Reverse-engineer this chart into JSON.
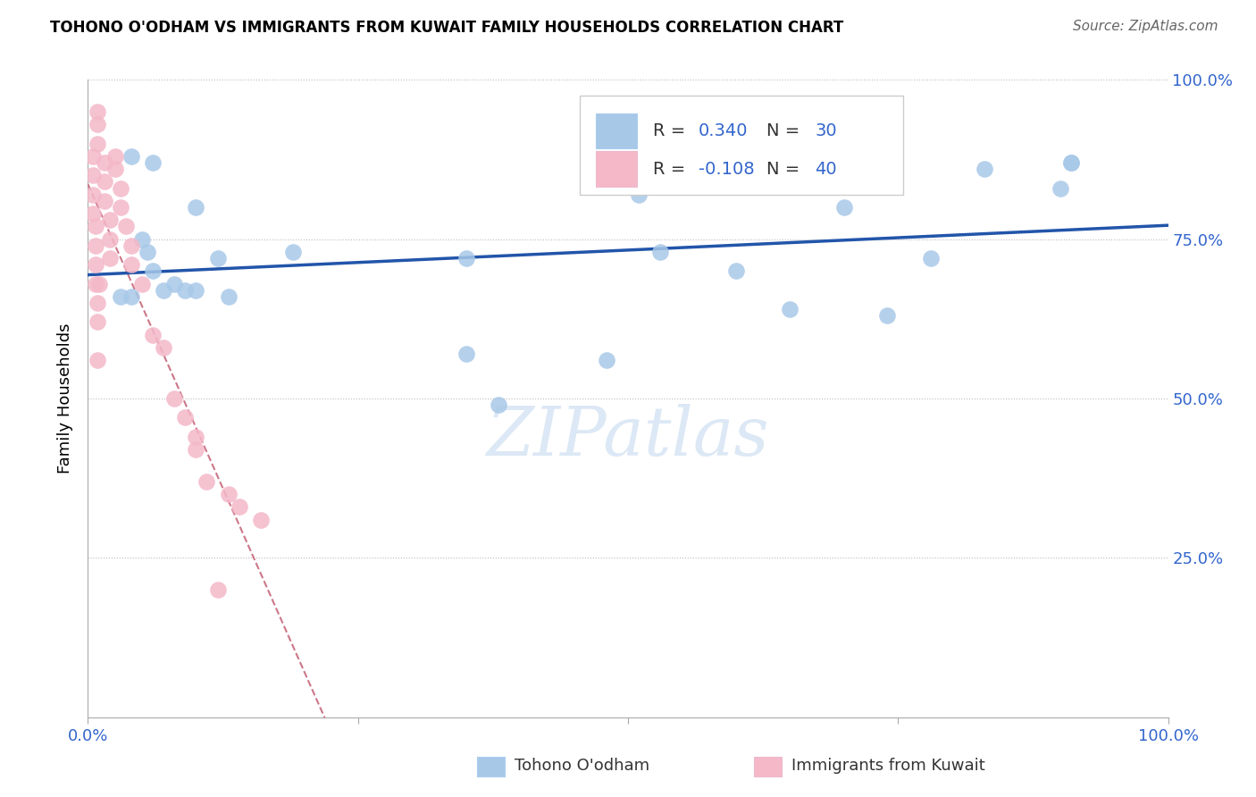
{
  "title": "TOHONO O'ODHAM VS IMMIGRANTS FROM KUWAIT FAMILY HOUSEHOLDS CORRELATION CHART",
  "source": "Source: ZipAtlas.com",
  "ylabel": "Family Households",
  "series1_name": "Tohono O'odham",
  "series2_name": "Immigrants from Kuwait",
  "series1_color": "#a8c8e8",
  "series2_color": "#f4b8c8",
  "series1_R": 0.34,
  "series1_N": 30,
  "series2_R": -0.108,
  "series2_N": 40,
  "series1_line_color": "#2255aa",
  "series2_line_color": "#cc7788",
  "text_blue": "#3366cc",
  "text_dark": "#333333",
  "xlim": [
    0.0,
    1.0
  ],
  "ylim": [
    0.0,
    1.0
  ],
  "yticks": [
    0.25,
    0.5,
    0.75,
    1.0
  ],
  "ytick_labels": [
    "25.0%",
    "50.0%",
    "75.0%",
    "100.0%"
  ],
  "xticks": [
    0.0,
    0.25,
    0.5,
    0.75,
    1.0
  ],
  "xtick_labels": [
    "0.0%",
    "",
    "",
    "",
    "100.0%"
  ],
  "watermark": "ZIPatlas",
  "blue_x": [
    0.04,
    0.06,
    0.05,
    0.055,
    0.1,
    0.12,
    0.19,
    0.35,
    0.51,
    0.6,
    0.7,
    0.78,
    0.83,
    0.9,
    0.91,
    0.48,
    0.53,
    0.65,
    0.74,
    0.35,
    0.38,
    0.1,
    0.13,
    0.06,
    0.08,
    0.07,
    0.09,
    0.03,
    0.04,
    0.91
  ],
  "blue_y": [
    0.88,
    0.87,
    0.75,
    0.73,
    0.8,
    0.72,
    0.73,
    0.72,
    0.82,
    0.7,
    0.8,
    0.72,
    0.86,
    0.83,
    0.87,
    0.56,
    0.73,
    0.64,
    0.63,
    0.57,
    0.49,
    0.67,
    0.66,
    0.7,
    0.68,
    0.67,
    0.67,
    0.66,
    0.66,
    0.87
  ],
  "pink_x": [
    0.005,
    0.005,
    0.005,
    0.005,
    0.007,
    0.007,
    0.007,
    0.007,
    0.009,
    0.009,
    0.009,
    0.009,
    0.009,
    0.009,
    0.01,
    0.015,
    0.015,
    0.015,
    0.02,
    0.02,
    0.02,
    0.025,
    0.025,
    0.03,
    0.03,
    0.035,
    0.04,
    0.04,
    0.05,
    0.06,
    0.07,
    0.08,
    0.09,
    0.1,
    0.1,
    0.11,
    0.12,
    0.13,
    0.14,
    0.16
  ],
  "pink_y": [
    0.88,
    0.85,
    0.82,
    0.79,
    0.77,
    0.74,
    0.71,
    0.68,
    0.65,
    0.62,
    0.95,
    0.93,
    0.9,
    0.56,
    0.68,
    0.87,
    0.84,
    0.81,
    0.78,
    0.75,
    0.72,
    0.88,
    0.86,
    0.83,
    0.8,
    0.77,
    0.74,
    0.71,
    0.68,
    0.6,
    0.58,
    0.5,
    0.47,
    0.44,
    0.42,
    0.37,
    0.2,
    0.35,
    0.33,
    0.31
  ]
}
